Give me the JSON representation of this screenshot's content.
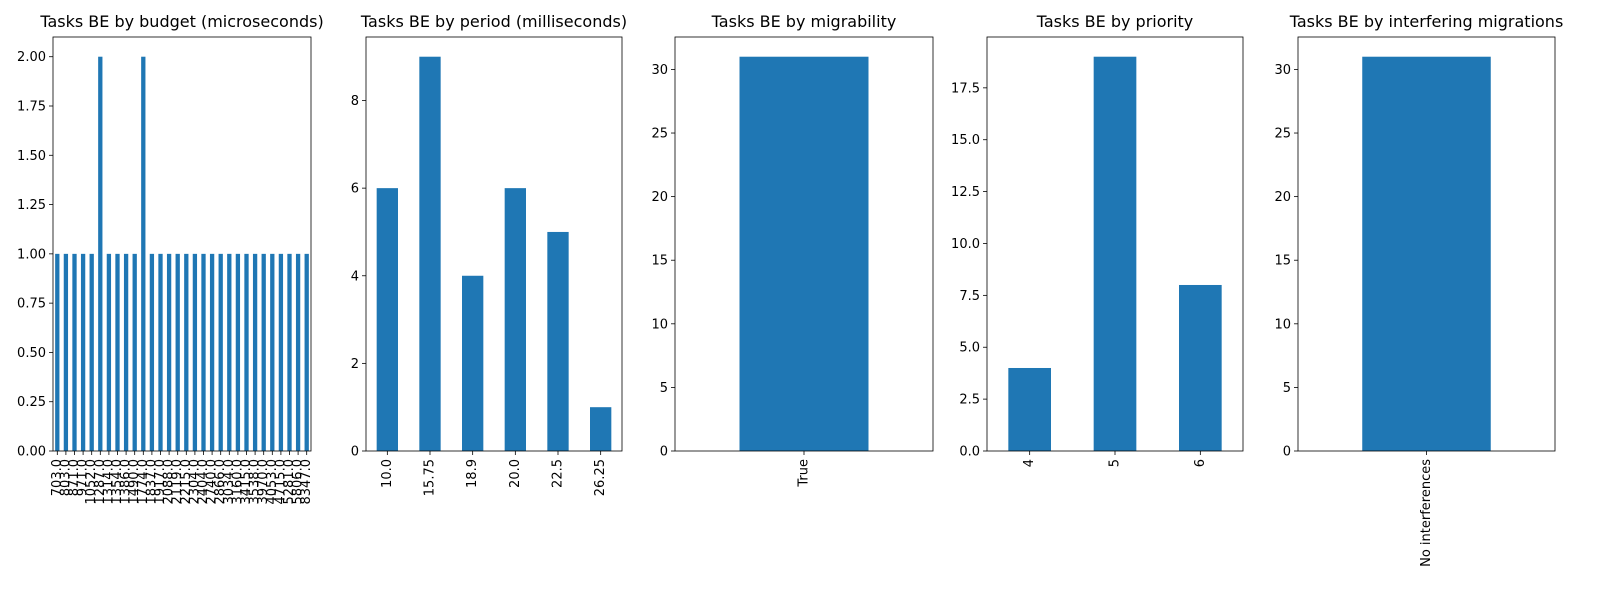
{
  "style": {
    "bar_color": "#1f77b4",
    "background": "#ffffff",
    "axis_color": "#000000"
  },
  "chart_data": [
    {
      "type": "bar",
      "title": "Tasks BE by budget (microseconds)",
      "categories": [
        "703.0",
        "803.0",
        "871.0",
        "971.0",
        "1052.0",
        "1287.0",
        "1314.0",
        "1354.0",
        "1386.0",
        "1490.0",
        "1774.0",
        "1837.0",
        "1917.0",
        "2088.0",
        "2119.0",
        "2215.0",
        "2304.0",
        "2404.0",
        "2740.0",
        "2866.0",
        "3034.0",
        "3160.0",
        "3415.0",
        "3538.0",
        "3970.0",
        "4053.0",
        "4715.0",
        "5281.0",
        "5806.0",
        "8347.0"
      ],
      "values": [
        1,
        1,
        1,
        1,
        1,
        2,
        1,
        1,
        1,
        1,
        2,
        1,
        1,
        1,
        1,
        1,
        1,
        1,
        1,
        1,
        1,
        1,
        1,
        1,
        1,
        1,
        1,
        1,
        1,
        1
      ],
      "ylim": [
        0,
        2.1
      ],
      "yticks": [
        "0.00",
        "0.25",
        "0.50",
        "0.75",
        "1.00",
        "1.25",
        "1.50",
        "1.75",
        "2.00"
      ],
      "xlabel": "",
      "ylabel": "",
      "grid": false,
      "legend": "none"
    },
    {
      "type": "bar",
      "title": "Tasks BE by period (milliseconds)",
      "categories": [
        "10.0",
        "15.75",
        "18.9",
        "20.0",
        "22.5",
        "26.25"
      ],
      "values": [
        6,
        9,
        4,
        6,
        5,
        1
      ],
      "ylim": [
        0,
        9.45
      ],
      "yticks": [
        "0",
        "2",
        "4",
        "6",
        "8"
      ],
      "xlabel": "",
      "ylabel": "",
      "grid": false,
      "legend": "none"
    },
    {
      "type": "bar",
      "title": "Tasks BE by migrability",
      "categories": [
        "True"
      ],
      "values": [
        31
      ],
      "ylim": [
        0,
        32.55
      ],
      "yticks": [
        "0",
        "5",
        "10",
        "15",
        "20",
        "25",
        "30"
      ],
      "xlabel": "",
      "ylabel": "",
      "grid": false,
      "legend": "none"
    },
    {
      "type": "bar",
      "title": "Tasks BE by priority",
      "categories": [
        "4",
        "5",
        "6"
      ],
      "values": [
        4,
        19,
        8
      ],
      "ylim": [
        0,
        19.95
      ],
      "yticks": [
        "0.0",
        "2.5",
        "5.0",
        "7.5",
        "10.0",
        "12.5",
        "15.0",
        "17.5"
      ],
      "xlabel": "",
      "ylabel": "",
      "grid": false,
      "legend": "none"
    },
    {
      "type": "bar",
      "title": "Tasks BE by interfering migrations",
      "categories": [
        "No interferences"
      ],
      "values": [
        31
      ],
      "ylim": [
        0,
        32.55
      ],
      "yticks": [
        "0",
        "5",
        "10",
        "15",
        "20",
        "25",
        "30"
      ],
      "xlabel": "",
      "ylabel": "",
      "grid": false,
      "legend": "none"
    }
  ]
}
